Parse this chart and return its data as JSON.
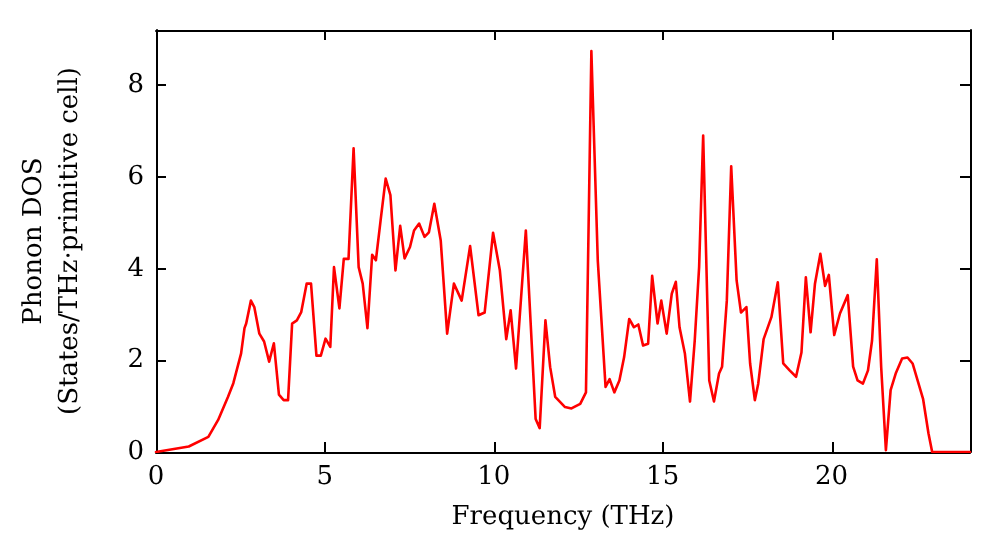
{
  "chart_data": {
    "type": "line",
    "xlabel": "Frequency (THz)",
    "ylabel": "Phonon DOS\n(States/THz·primitive cell)",
    "xlim": [
      0,
      24.1
    ],
    "xticks": [
      0,
      5,
      10,
      15,
      20
    ],
    "ylim": [
      0,
      9.2
    ],
    "yticks": [
      0,
      2,
      4,
      6,
      8
    ],
    "marker": "none",
    "line_style": "solid",
    "x": [
      0,
      0.97,
      1.55,
      1.84,
      2.13,
      2.29,
      2.52,
      2.62,
      2.67,
      2.81,
      2.91,
      3.06,
      3.2,
      3.35,
      3.49,
      3.64,
      3.78,
      3.91,
      4.03,
      4.17,
      4.3,
      4.46,
      4.59,
      4.75,
      4.88,
      5.02,
      5.16,
      5.27,
      5.43,
      5.56,
      5.7,
      5.85,
      6.0,
      6.12,
      6.26,
      6.4,
      6.51,
      6.65,
      6.8,
      6.94,
      7.09,
      7.23,
      7.36,
      7.52,
      7.64,
      7.79,
      7.95,
      8.08,
      8.24,
      8.43,
      8.62,
      8.82,
      9.05,
      9.3,
      9.55,
      9.73,
      9.98,
      10.18,
      10.37,
      10.5,
      10.66,
      10.95,
      11.24,
      11.36,
      11.53,
      11.67,
      11.82,
      12.11,
      12.3,
      12.56,
      12.73,
      12.89,
      13.08,
      13.31,
      13.43,
      13.57,
      13.72,
      13.86,
      14.01,
      14.15,
      14.28,
      14.42,
      14.57,
      14.69,
      14.85,
      14.96,
      15.12,
      15.27,
      15.39,
      15.5,
      15.66,
      15.81,
      15.95,
      16.08,
      16.2,
      16.38,
      16.52,
      16.67,
      16.76,
      16.9,
      17.03,
      17.19,
      17.32,
      17.48,
      17.59,
      17.73,
      17.83,
      17.99,
      18.22,
      18.41,
      18.57,
      18.76,
      18.95,
      19.11,
      19.24,
      19.38,
      19.51,
      19.67,
      19.81,
      19.92,
      20.08,
      20.25,
      20.48,
      20.64,
      20.77,
      20.93,
      21.08,
      21.2,
      21.34,
      21.47,
      21.61,
      21.75,
      21.9,
      22.09,
      22.25,
      22.4,
      22.71,
      22.87,
      22.98,
      24.1
    ],
    "series": [
      {
        "color": "#ff0000",
        "values": [
          0,
          0.12,
          0.33,
          0.7,
          1.2,
          1.5,
          2.15,
          2.7,
          2.8,
          3.3,
          3.16,
          2.58,
          2.41,
          1.97,
          2.37,
          1.25,
          1.13,
          1.13,
          2.8,
          2.87,
          3.05,
          3.67,
          3.67,
          2.1,
          2.1,
          2.47,
          2.29,
          4.03,
          3.13,
          4.21,
          4.21,
          6.62,
          4.03,
          3.67,
          2.7,
          4.3,
          4.18,
          5.05,
          5.96,
          5.6,
          3.96,
          4.93,
          4.22,
          4.47,
          4.83,
          4.98,
          4.69,
          4.79,
          5.41,
          4.61,
          2.58,
          3.67,
          3.3,
          4.49,
          2.98,
          3.04,
          4.78,
          3.96,
          2.46,
          3.09,
          1.82,
          4.83,
          0.72,
          0.52,
          2.87,
          1.85,
          1.2,
          0.98,
          0.95,
          1.05,
          1.3,
          8.74,
          4.17,
          1.42,
          1.59,
          1.3,
          1.56,
          2.07,
          2.9,
          2.72,
          2.78,
          2.32,
          2.36,
          3.84,
          2.8,
          3.3,
          2.58,
          3.45,
          3.71,
          2.72,
          2.14,
          1.1,
          2.43,
          4.03,
          6.9,
          1.56,
          1.1,
          1.71,
          1.86,
          3.3,
          6.23,
          3.74,
          3.04,
          3.16,
          1.93,
          1.13,
          1.49,
          2.46,
          2.94,
          3.7,
          1.93,
          1.78,
          1.64,
          2.17,
          3.81,
          2.61,
          3.67,
          4.32,
          3.62,
          3.86,
          2.55,
          3.02,
          3.42,
          1.86,
          1.56,
          1.49,
          1.78,
          2.43,
          4.2,
          1.86,
          0.04,
          1.35,
          1.71,
          2.04,
          2.06,
          1.93,
          1.16,
          0.41,
          0,
          0
        ]
      }
    ]
  }
}
